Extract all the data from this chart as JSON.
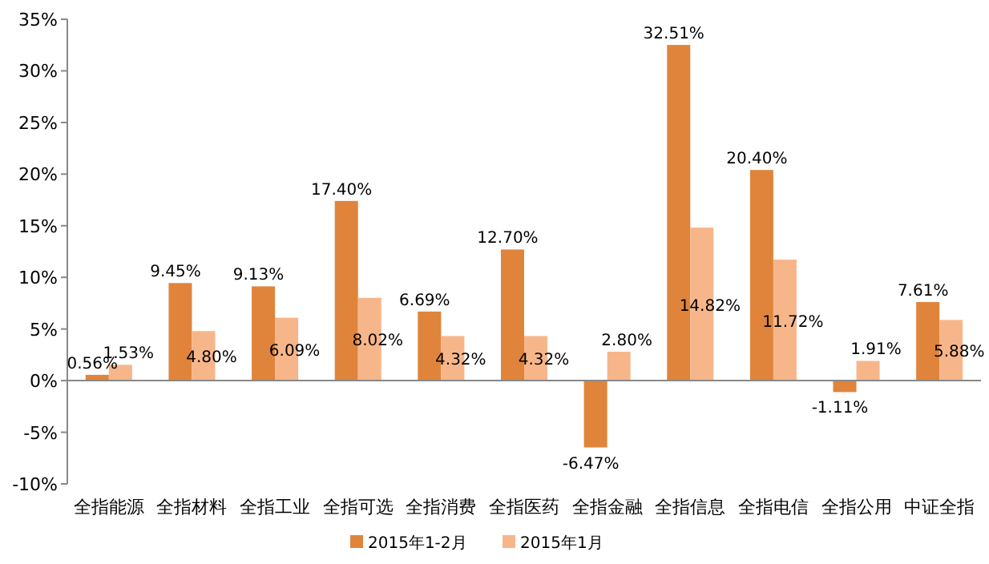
{
  "chart_data": {
    "type": "bar",
    "categories": [
      "全指能源",
      "全指材料",
      "全指工业",
      "全指可选",
      "全指消费",
      "全指医药",
      "全指金融",
      "全指信息",
      "全指电信",
      "全指公用",
      "中证全指"
    ],
    "series": [
      {
        "name": "2015年1-2月",
        "color": "#e0843c",
        "values": [
          0.56,
          9.45,
          9.13,
          17.4,
          6.69,
          12.7,
          -6.47,
          32.51,
          20.4,
          -1.11,
          7.61
        ],
        "value_labels": [
          "0.56%",
          "9.45%",
          "9.13%",
          "17.40%",
          "6.69%",
          "12.70%",
          "-6.47%",
          "32.51%",
          "20.40%",
          "-1.11%",
          "7.61%"
        ]
      },
      {
        "name": "2015年1月",
        "color": "#f7b68a",
        "values": [
          1.53,
          4.8,
          6.09,
          8.02,
          4.32,
          4.32,
          2.8,
          14.82,
          11.72,
          1.91,
          5.88
        ],
        "value_labels": [
          "1.53%",
          "4.80%",
          "6.09%",
          "8.02%",
          "4.32%",
          "4.32%",
          "2.80%",
          "14.82%",
          "11.72%",
          "1.91%",
          "5.88%"
        ]
      }
    ],
    "ylim": [
      -10,
      35
    ],
    "yticks": [
      {
        "value": -10,
        "label": "-10%"
      },
      {
        "value": -5,
        "label": "-5%"
      },
      {
        "value": 0,
        "label": "0%"
      },
      {
        "value": 5,
        "label": "5%"
      },
      {
        "value": 10,
        "label": "10%"
      },
      {
        "value": 15,
        "label": "15%"
      },
      {
        "value": 20,
        "label": "20%"
      },
      {
        "value": 25,
        "label": "25%"
      },
      {
        "value": 30,
        "label": "30%"
      },
      {
        "value": 35,
        "label": "35%"
      }
    ],
    "legend": "bottom"
  }
}
